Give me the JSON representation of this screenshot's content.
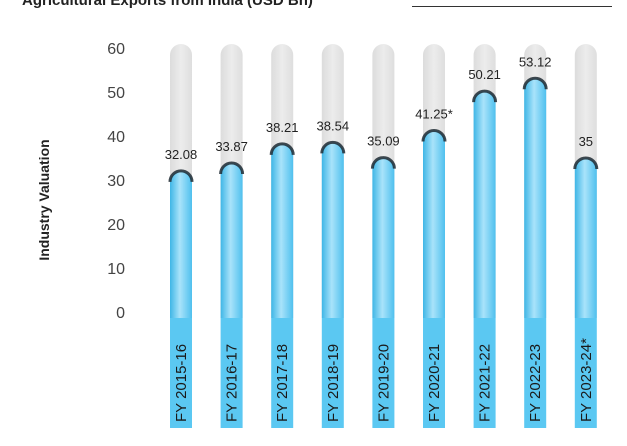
{
  "chart_data": {
    "type": "bar",
    "title": "Agricultural Exports from India (USD Bn)",
    "ylabel": "Industry Valuation",
    "xlabel": "",
    "ylim": [
      0,
      60
    ],
    "yticks": [
      0,
      10,
      20,
      30,
      40,
      50,
      60
    ],
    "categories": [
      "FY 2015-16",
      "FY 2016-17",
      "FY 2017-18",
      "FY 2018-19",
      "FY 2019-20",
      "FY 2020-21",
      "FY 2021-22",
      "FY 2022-23",
      "FY 2023-24*"
    ],
    "values": [
      32.08,
      33.87,
      38.21,
      38.54,
      35.09,
      41.25,
      50.21,
      53.12,
      35
    ],
    "value_labels": [
      "32.08",
      "33.87",
      "38.21",
      "38.54",
      "35.09",
      "41.25*",
      "50.21",
      "53.12",
      "35"
    ],
    "grid": false,
    "colors": {
      "bar": "#5bc8f2",
      "bar_light": "#a9e3fa",
      "track": "#e4e4e4",
      "category_box": "#5bc8f2"
    }
  }
}
